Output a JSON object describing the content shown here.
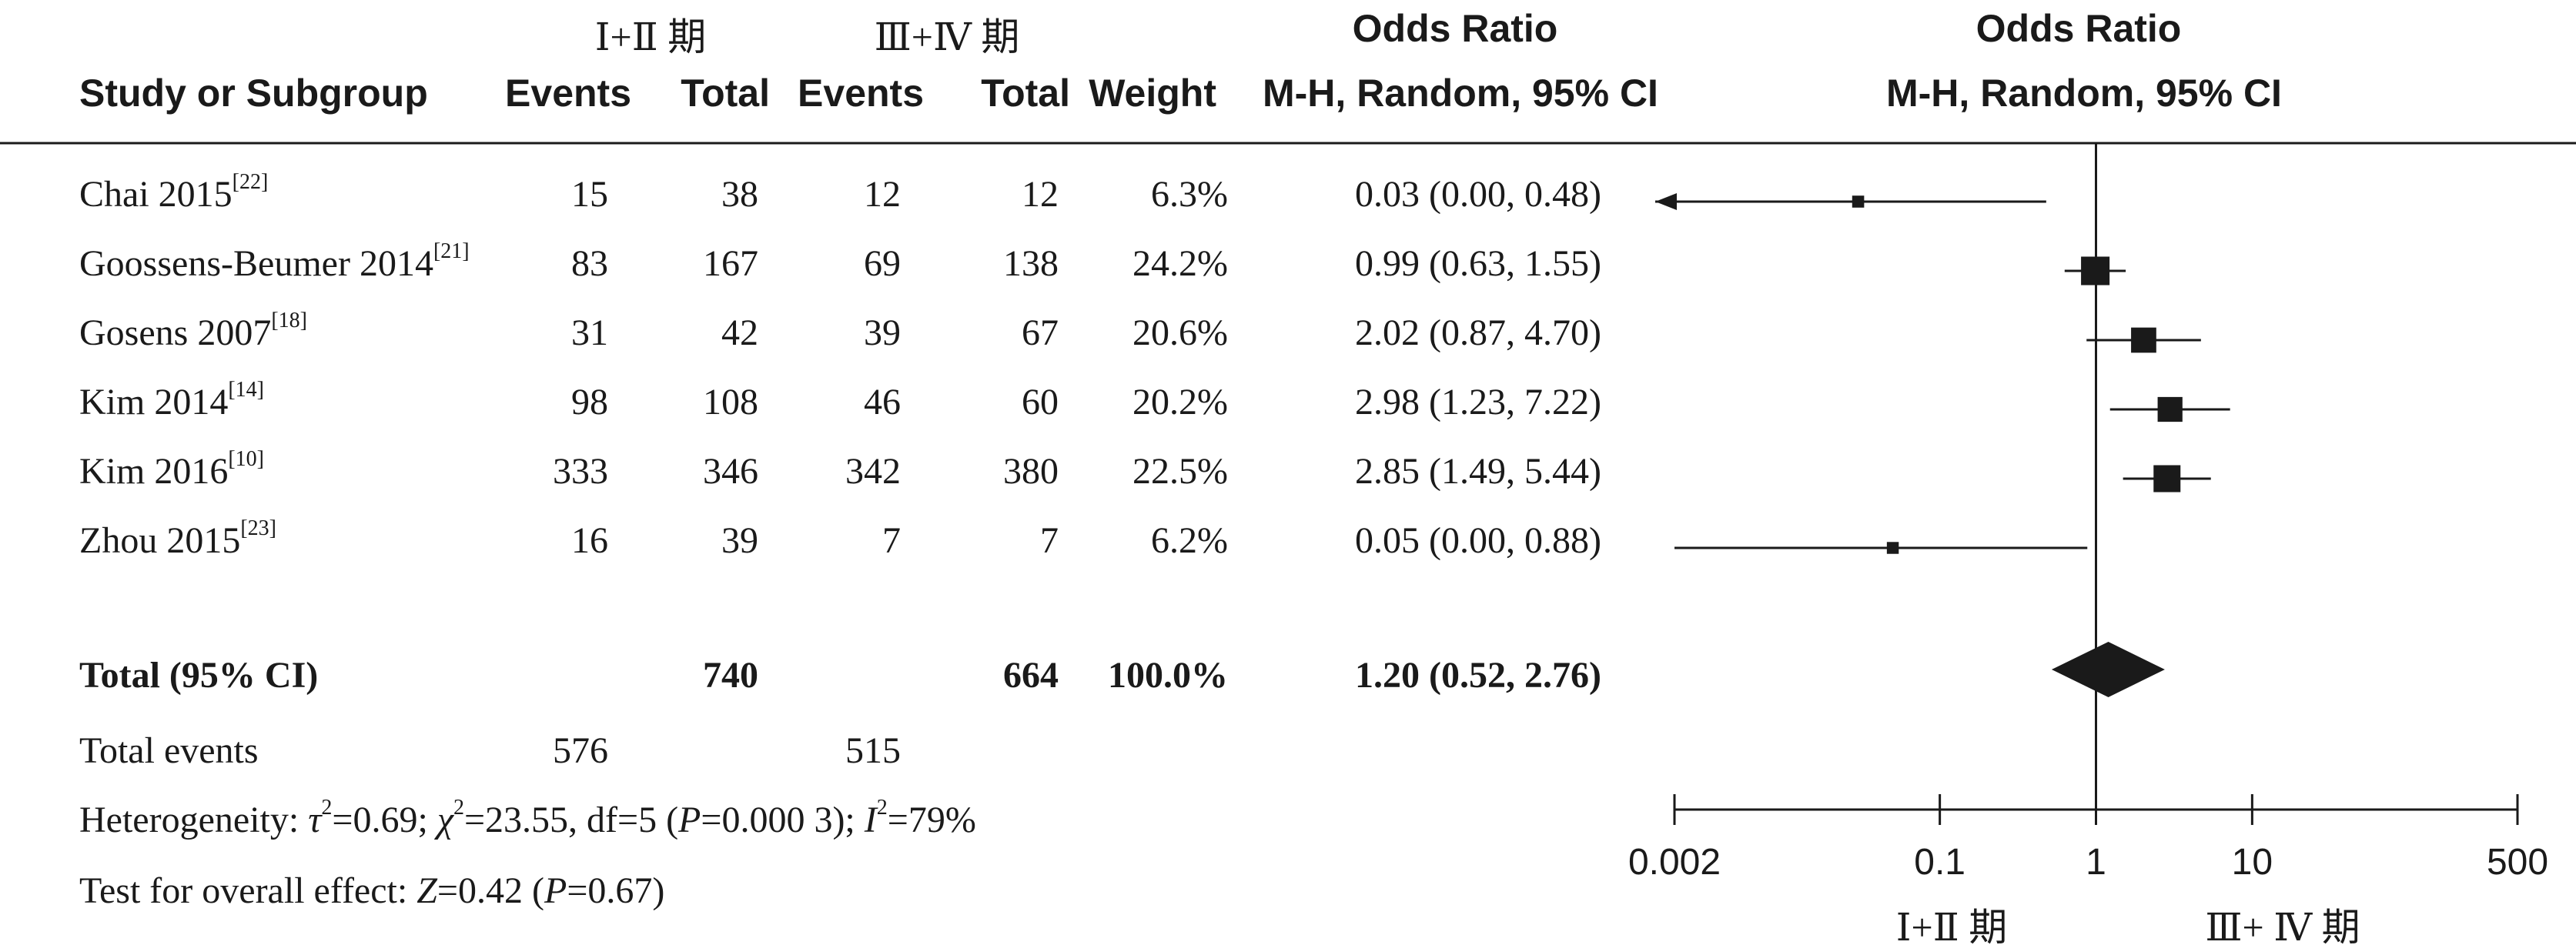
{
  "header": {
    "group1_label": "Ⅰ+Ⅱ 期",
    "group2_label": "Ⅲ+Ⅳ 期",
    "col_study": "Study or Subgroup",
    "col_events1": "Events",
    "col_total1": "Total",
    "col_events2": "Events",
    "col_total2": "Total",
    "col_weight": "Weight",
    "col_or_title": "Odds Ratio",
    "col_or_method": "M-H, Random, 95% CI",
    "plot_title": "Odds Ratio",
    "plot_method": "M-H, Random, 95% CI"
  },
  "rows": [
    {
      "study": "Chai 2015",
      "ref": "[22]",
      "events1": "15",
      "total1": "38",
      "events2": "12",
      "total2": "12",
      "weight": "6.3%",
      "or_text": "0.03 (0.00, 0.48)"
    },
    {
      "study": "Goossens-Beumer 2014",
      "ref": "[21]",
      "events1": "83",
      "total1": "167",
      "events2": "69",
      "total2": "138",
      "weight": "24.2%",
      "or_text": "0.99 (0.63, 1.55)"
    },
    {
      "study": "Gosens 2007",
      "ref": "[18]",
      "events1": "31",
      "total1": "42",
      "events2": "39",
      "total2": "67",
      "weight": "20.6%",
      "or_text": "2.02 (0.87, 4.70)"
    },
    {
      "study": "Kim 2014",
      "ref": "[14]",
      "events1": "98",
      "total1": "108",
      "events2": "46",
      "total2": "60",
      "weight": "20.2%",
      "or_text": "2.98 (1.23, 7.22)"
    },
    {
      "study": "Kim 2016",
      "ref": "[10]",
      "events1": "333",
      "total1": "346",
      "events2": "342",
      "total2": "380",
      "weight": "22.5%",
      "or_text": "2.85 (1.49, 5.44)"
    },
    {
      "study": "Zhou 2015",
      "ref": "[23]",
      "events1": "16",
      "total1": "39",
      "events2": "7",
      "total2": "7",
      "weight": "6.2%",
      "or_text": "0.05 (0.00, 0.88)"
    }
  ],
  "total": {
    "label": "Total (95% CI)",
    "total1": "740",
    "total2": "664",
    "weight": "100.0%",
    "or_text": "1.20 (0.52, 2.76)"
  },
  "total_events": {
    "label": "Total events",
    "events1": "576",
    "events2": "515"
  },
  "heterogeneity": {
    "prefix": "Heterogeneity: ",
    "tau_sym": "τ",
    "tau_val": "=0.69; ",
    "chi_sym": "χ",
    "chi_val": "=23.55, df=5 (",
    "p_sym": "P",
    "p_val": "=0.000 3); ",
    "i_sym": "I",
    "i_val": "=79%",
    "sq": "2"
  },
  "overall": {
    "prefix": "Test for overall effect: ",
    "z_sym": "Z",
    "z_val": "=0.42 (",
    "p_sym": "P",
    "p_val": "=0.67)"
  },
  "axis": {
    "ticks": [
      "0.002",
      "0.1",
      "1",
      "10",
      "500"
    ],
    "left_label": "Ⅰ+Ⅱ 期",
    "right_label": "Ⅲ+ Ⅳ 期"
  },
  "chart_data": {
    "type": "forest",
    "scale": "log",
    "xlim": [
      0.002,
      500
    ],
    "null_line": 1,
    "studies": [
      {
        "name": "Chai 2015",
        "or": 0.03,
        "lo": 0.0,
        "hi": 0.48,
        "weight": 6.3,
        "arrow_left": true
      },
      {
        "name": "Goossens-Beumer 2014",
        "or": 0.99,
        "lo": 0.63,
        "hi": 1.55,
        "weight": 24.2
      },
      {
        "name": "Gosens 2007",
        "or": 2.02,
        "lo": 0.87,
        "hi": 4.7,
        "weight": 20.6
      },
      {
        "name": "Kim 2014",
        "or": 2.98,
        "lo": 1.23,
        "hi": 7.22,
        "weight": 20.2
      },
      {
        "name": "Kim 2016",
        "or": 2.85,
        "lo": 1.49,
        "hi": 5.44,
        "weight": 22.5
      },
      {
        "name": "Zhou 2015",
        "or": 0.05,
        "lo": 0.0,
        "hi": 0.88,
        "weight": 6.2
      }
    ],
    "summary": {
      "or": 1.2,
      "lo": 0.52,
      "hi": 2.76
    },
    "colors": {
      "ink": "#1a1a1a"
    }
  }
}
